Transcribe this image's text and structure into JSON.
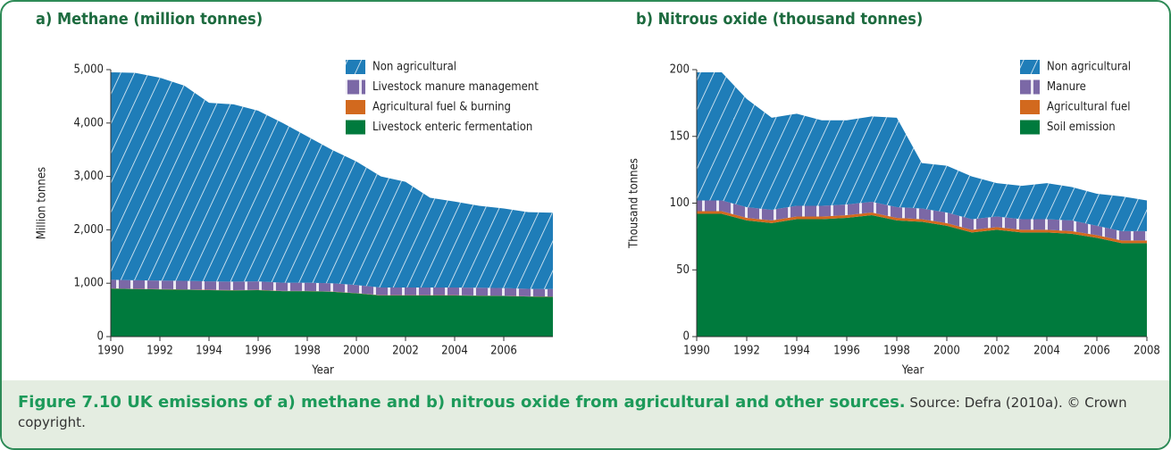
{
  "chart_data": [
    {
      "type": "stacked-area",
      "title": "a) Methane (million tonnes)",
      "xlabel": "Year",
      "ylabel": "Million tonnes",
      "x": [
        1990,
        1991,
        1992,
        1993,
        1994,
        1995,
        1996,
        1997,
        1998,
        1999,
        2000,
        2001,
        2002,
        2003,
        2004,
        2005,
        2006,
        2007,
        2008
      ],
      "xlim": [
        1990,
        2008
      ],
      "xticks": [
        1990,
        1992,
        1994,
        1996,
        1998,
        2000,
        2002,
        2004,
        2006
      ],
      "ylim": [
        0,
        5000
      ],
      "yticks": [
        0,
        {
          "value": 1000,
          "label": "1,000"
        },
        {
          "value": 2000,
          "label": "2,000"
        },
        {
          "value": 3000,
          "label": "3,000"
        },
        {
          "value": 4000,
          "label": "4,000"
        },
        {
          "value": 5000,
          "label": "5,000"
        }
      ],
      "series": [
        {
          "name": "Livestock enteric fermentation",
          "color": "#007a3d",
          "values": [
            900,
            890,
            885,
            880,
            870,
            865,
            870,
            850,
            850,
            840,
            810,
            770,
            770,
            770,
            770,
            765,
            760,
            750,
            745
          ]
        },
        {
          "name": "Agricultural fuel & burning",
          "color": "#d2691e",
          "values": [
            5,
            5,
            5,
            5,
            5,
            5,
            5,
            5,
            5,
            5,
            5,
            5,
            5,
            5,
            5,
            5,
            5,
            5,
            5
          ]
        },
        {
          "name": "Livestock manure management",
          "color": "#7b68a6",
          "values": [
            160,
            160,
            160,
            160,
            160,
            160,
            160,
            155,
            155,
            155,
            150,
            145,
            145,
            145,
            145,
            145,
            145,
            140,
            140
          ]
        },
        {
          "name": "Non agricultural",
          "color": "#1f7db8",
          "values": [
            3885,
            3885,
            3800,
            3655,
            3345,
            3320,
            3195,
            2990,
            2740,
            2500,
            2315,
            2080,
            1980,
            1680,
            1610,
            1535,
            1490,
            1435,
            1430
          ]
        }
      ]
    },
    {
      "type": "stacked-area",
      "title": "b) Nitrous oxide (thousand tonnes)",
      "xlabel": "Year",
      "ylabel": "Thousand tonnes",
      "x": [
        1990,
        1991,
        1992,
        1993,
        1994,
        1995,
        1996,
        1997,
        1998,
        1999,
        2000,
        2001,
        2002,
        2003,
        2004,
        2005,
        2006,
        2007,
        2008
      ],
      "xlim": [
        1990,
        2008
      ],
      "xticks": [
        1990,
        1992,
        1994,
        1996,
        1998,
        2000,
        2002,
        2004,
        2006,
        2008
      ],
      "ylim": [
        0,
        200
      ],
      "yticks": [
        0,
        50,
        100,
        150,
        200
      ],
      "series": [
        {
          "name": "Soil emission",
          "color": "#007a3d",
          "values": [
            92,
            92,
            87,
            85,
            88,
            88,
            89,
            91,
            87,
            86,
            83,
            78,
            80,
            78,
            78,
            77,
            74,
            70,
            70
          ]
        },
        {
          "name": "Agricultural fuel",
          "color": "#d2691e",
          "values": [
            2,
            2,
            2,
            2,
            2,
            2,
            2,
            2,
            2,
            2,
            2,
            2,
            2,
            2,
            2,
            2,
            2,
            2,
            2
          ]
        },
        {
          "name": "Manure",
          "color": "#7b68a6",
          "values": [
            8,
            8,
            8,
            8,
            8,
            8,
            8,
            8,
            8,
            8,
            8,
            8,
            8,
            8,
            8,
            8,
            7,
            7,
            7
          ]
        },
        {
          "name": "Non agricultural",
          "color": "#1f7db8",
          "values": [
            96,
            96,
            81,
            69,
            69,
            64,
            63,
            64,
            67,
            34,
            35,
            32,
            25,
            25,
            27,
            25,
            24,
            26,
            23
          ]
        }
      ]
    }
  ],
  "caption": {
    "title": "Figure 7.10 UK emissions of a) methane and b) nitrous oxide from agricultural and other sources.",
    "source": "Source: Defra (2010a). © Crown copyright."
  }
}
